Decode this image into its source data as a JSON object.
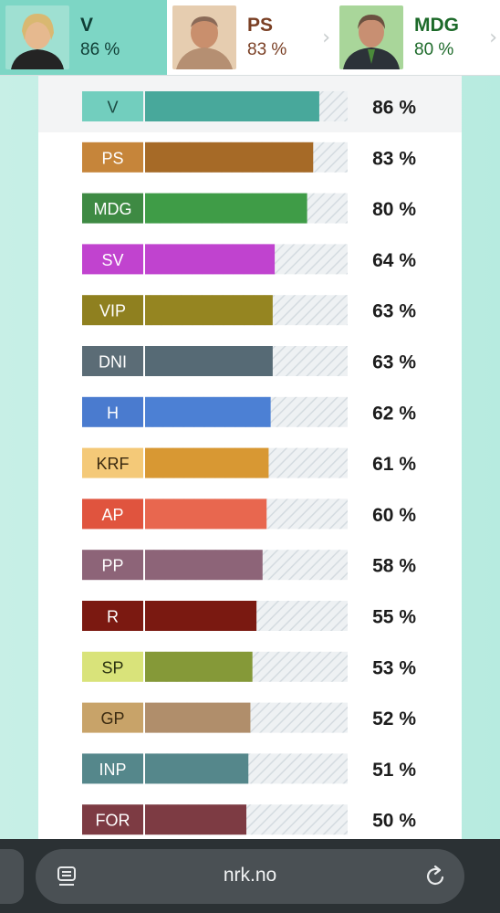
{
  "top_cards": [
    {
      "name": "V",
      "pct": "86 %",
      "name_color": "#0f3e36",
      "pct_color": "#0f3e36",
      "active": true
    },
    {
      "name": "PS",
      "pct": "83 %",
      "name_color": "#7a3f24",
      "pct_color": "#7a3f24",
      "active": false
    },
    {
      "name": "MDG",
      "pct": "80 %",
      "name_color": "#1d6a2a",
      "pct_color": "#1d6a2a",
      "active": false
    }
  ],
  "browser": {
    "url": "nrk.no"
  },
  "chart_data": {
    "type": "bar",
    "orientation": "horizontal",
    "xlim": [
      0,
      100
    ],
    "categories": [
      "V",
      "PS",
      "MDG",
      "SV",
      "VIP",
      "DNI",
      "H",
      "KRF",
      "AP",
      "PP",
      "R",
      "SP",
      "GP",
      "INP",
      "FOR"
    ],
    "values": [
      86,
      83,
      80,
      64,
      63,
      63,
      62,
      61,
      60,
      58,
      55,
      53,
      52,
      51,
      50
    ],
    "value_labels": [
      "86 %",
      "83 %",
      "80 %",
      "64 %",
      "63 %",
      "63 %",
      "62 %",
      "61 %",
      "60 %",
      "58 %",
      "55 %",
      "53 %",
      "52 %",
      "51 %",
      "50 %"
    ],
    "bar_colors": [
      "#48a89b",
      "#a66a27",
      "#3f9c47",
      "#c043cf",
      "#958521",
      "#566a75",
      "#4c80d4",
      "#d89833",
      "#e8674f",
      "#8d6478",
      "#7a1911",
      "#859938",
      "#b08e6b",
      "#55878b",
      "#7d3b43"
    ],
    "label_bg_colors": [
      "#72cebe",
      "#c6853a",
      "#3e8a43",
      "#c143cf",
      "#8f801f",
      "#5b6c76",
      "#4a7bcf",
      "#f4c978",
      "#e0543e",
      "#8d6478",
      "#7b1911",
      "#d9e37a",
      "#c8a369",
      "#55878b",
      "#7d3b43"
    ],
    "label_text_colors": [
      "#1c4a42",
      "#ffffff",
      "#ffffff",
      "#ffffff",
      "#ffffff",
      "#ffffff",
      "#ffffff",
      "#3b2a10",
      "#ffffff",
      "#ffffff",
      "#ffffff",
      "#2b3210",
      "#3b2a10",
      "#ffffff",
      "#ffffff"
    ],
    "track_color": "#e6eaed",
    "grid": false,
    "legend": "none"
  }
}
